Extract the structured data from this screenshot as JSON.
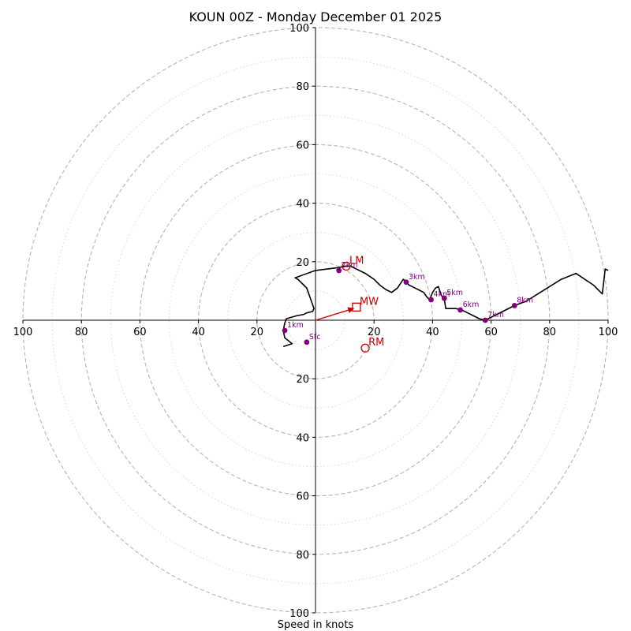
{
  "chart_data": {
    "type": "line",
    "title": "KOUN 00Z - Monday December 01 2025",
    "xlabel": "Speed in knots",
    "ylabel": "",
    "xlim": [
      -100,
      100
    ],
    "ylim": [
      -100,
      100
    ],
    "ring_values": [
      20,
      40,
      60,
      80,
      100
    ],
    "tick_labels": [
      "20",
      "40",
      "60",
      "80",
      "100"
    ],
    "colors": {
      "trace": "#000000",
      "height_marker": "#800080",
      "storm_motion": "#cc0000",
      "ring_major": "#b4b4b4",
      "ring_minor": "#d4d4d4"
    },
    "hodograph": {
      "u": [
        -11,
        -8,
        -10.5,
        -11,
        -10.5,
        -10,
        -6.5,
        -4,
        -3,
        -1,
        -0.5,
        -3,
        -4,
        -6,
        -7,
        0,
        8,
        10,
        12,
        14,
        17,
        20,
        22,
        24,
        26,
        28,
        29,
        30,
        31,
        32,
        33,
        35,
        37,
        38,
        39,
        40,
        41,
        42,
        43,
        44,
        44.5,
        45,
        48,
        50,
        52,
        54,
        56,
        58,
        62,
        65,
        68,
        72,
        76,
        80,
        84,
        89,
        95,
        98,
        99,
        100
      ],
      "v": [
        -9,
        -8,
        -6,
        -3.5,
        -1,
        0.5,
        1.5,
        2,
        2.5,
        3,
        4,
        11,
        12,
        14,
        14.5,
        17,
        18,
        18.5,
        18.5,
        17.5,
        16,
        14,
        12,
        10.5,
        9.5,
        11,
        12.5,
        14,
        13,
        12,
        11.5,
        10.5,
        9.5,
        8,
        7,
        9.5,
        11,
        11.5,
        8.5,
        7.5,
        4,
        4,
        4,
        3.5,
        2.5,
        1.5,
        0.5,
        0,
        2,
        3.5,
        5,
        6.5,
        9,
        11.5,
        14,
        16,
        12,
        9,
        17.5,
        17
      ]
    },
    "height_markers": [
      {
        "label": "Sfc",
        "u": -3,
        "v": -7.5
      },
      {
        "label": "1km",
        "u": -10.5,
        "v": -3.5
      },
      {
        "label": "2km",
        "u": 8,
        "v": 17
      },
      {
        "label": "3km",
        "u": 31,
        "v": 13
      },
      {
        "label": "4km",
        "u": 39.5,
        "v": 7
      },
      {
        "label": "5km",
        "u": 44,
        "v": 7.5
      },
      {
        "label": "6km",
        "u": 49.5,
        "v": 3.5
      },
      {
        "label": "7km",
        "u": 58,
        "v": 0
      },
      {
        "label": "8km",
        "u": 68,
        "v": 5
      }
    ],
    "storm_motion": [
      {
        "label": "LM",
        "u": 10.5,
        "v": 18.5,
        "marker": "circle"
      },
      {
        "label": "MW",
        "u": 14,
        "v": 4.5,
        "marker": "square"
      },
      {
        "label": "RM",
        "u": 17,
        "v": -9.5,
        "marker": "circle"
      }
    ],
    "mean_wind_vector": {
      "u": 13,
      "v": 4
    }
  }
}
